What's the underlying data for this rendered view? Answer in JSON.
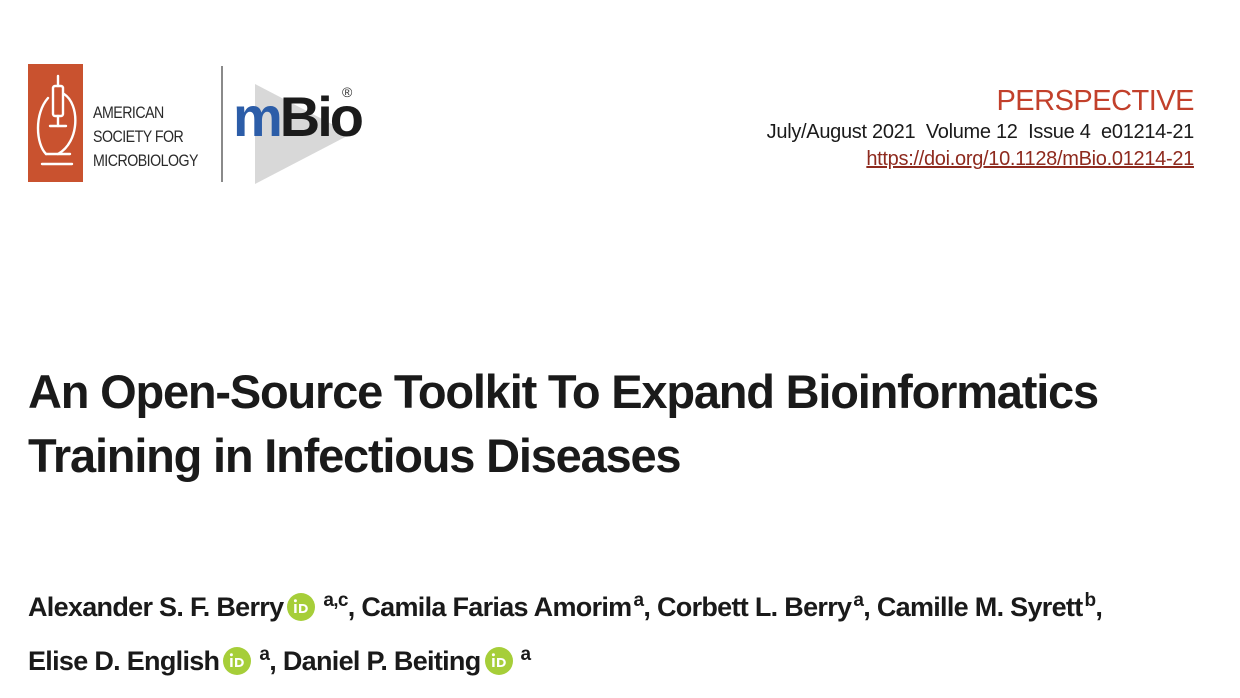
{
  "header": {
    "publisher_lines": [
      "AMERICAN",
      "SOCIETY FOR",
      "MICROBIOLOGY"
    ],
    "journal_m": "m",
    "journal_rest": "Bio",
    "registered_mark": "®"
  },
  "meta": {
    "article_type": "PERSPECTIVE",
    "citation": "July/August 2021  Volume 12  Issue 4  e01214-21",
    "doi": "https://doi.org/10.1128/mBio.01214-21"
  },
  "title_lines": [
    "An Open-Source Toolkit To Expand Bioinformatics",
    "Training in Infectious Diseases"
  ],
  "authors": [
    {
      "name": "Alexander S. F. Berry",
      "affiliation": "a,c",
      "orcid": true,
      "sep": ","
    },
    {
      "name": "Camila Farias Amorim",
      "affiliation": "a",
      "orcid": false,
      "sep": ","
    },
    {
      "name": "Corbett L. Berry",
      "affiliation": "a",
      "orcid": false,
      "sep": ","
    },
    {
      "name": "Camille M. Syrett",
      "affiliation": "b",
      "orcid": false,
      "sep": ","
    },
    {
      "name": "Elise D. English",
      "affiliation": "a",
      "orcid": true,
      "sep": ","
    },
    {
      "name": "Daniel P. Beiting",
      "affiliation": "a",
      "orcid": true,
      "sep": ""
    }
  ],
  "colors": {
    "asm_red": "#c9522f",
    "perspective_red": "#c2402b",
    "doi_red": "#8e2a1e",
    "mbio_blue": "#2c5da8",
    "orcid_green": "#a6ce39"
  },
  "icons": {
    "asm": "microscope-icon",
    "orcid": "orcid-id-icon"
  }
}
